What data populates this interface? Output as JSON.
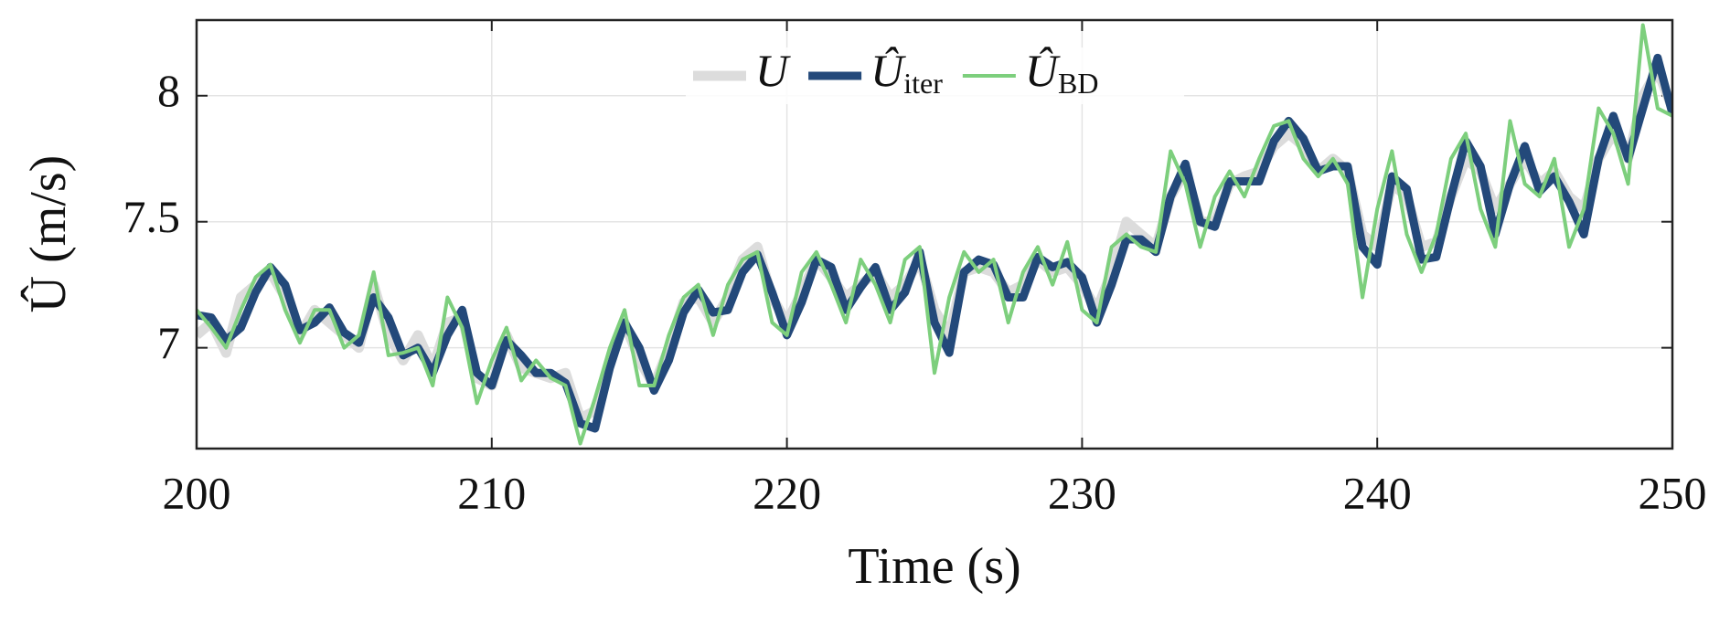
{
  "chart_data": {
    "type": "line",
    "xlabel": "Time (s)",
    "ylabel": "Û (m/s)",
    "x": [
      200,
      200.5,
      201,
      201.5,
      202,
      202.5,
      203,
      203.5,
      204,
      204.5,
      205,
      205.5,
      206,
      206.5,
      207,
      207.5,
      208,
      208.5,
      209,
      209.5,
      210,
      210.5,
      211,
      211.5,
      212,
      212.5,
      213,
      213.5,
      214,
      214.5,
      215,
      215.5,
      216,
      216.5,
      217,
      217.5,
      218,
      218.5,
      219,
      219.5,
      220,
      220.5,
      221,
      221.5,
      222,
      222.5,
      223,
      223.5,
      224,
      224.5,
      225,
      225.5,
      226,
      226.5,
      227,
      227.5,
      228,
      228.5,
      229,
      229.5,
      230,
      230.5,
      231,
      231.5,
      232,
      232.5,
      233,
      233.5,
      234,
      234.5,
      235,
      235.5,
      236,
      236.5,
      237,
      237.5,
      238,
      238.5,
      239,
      239.5,
      240,
      240.5,
      241,
      241.5,
      242,
      242.5,
      243,
      243.5,
      244,
      244.5,
      245,
      245.5,
      246,
      246.5,
      247,
      247.5,
      248,
      248.5,
      249,
      249.5,
      250
    ],
    "series": [
      {
        "name": "U",
        "color": "#dcdcdc",
        "width": 11,
        "values": [
          7.05,
          7.1,
          6.98,
          7.2,
          7.25,
          7.3,
          7.2,
          7.05,
          7.15,
          7.1,
          7.05,
          7.0,
          7.25,
          7.05,
          6.95,
          7.05,
          6.92,
          7.1,
          7.12,
          6.88,
          6.85,
          7.05,
          6.92,
          6.9,
          6.88,
          6.9,
          6.72,
          6.75,
          6.95,
          7.1,
          6.95,
          6.85,
          7.0,
          7.18,
          7.2,
          7.1,
          7.2,
          7.35,
          7.4,
          7.2,
          7.1,
          7.22,
          7.35,
          7.28,
          7.2,
          7.25,
          7.3,
          7.2,
          7.25,
          7.35,
          7.15,
          7.05,
          7.3,
          7.32,
          7.3,
          7.22,
          7.25,
          7.35,
          7.3,
          7.32,
          7.25,
          7.15,
          7.3,
          7.5,
          7.45,
          7.4,
          7.6,
          7.7,
          7.5,
          7.5,
          7.65,
          7.68,
          7.7,
          7.8,
          7.85,
          7.8,
          7.7,
          7.75,
          7.7,
          7.45,
          7.4,
          7.65,
          7.6,
          7.4,
          7.42,
          7.6,
          7.75,
          7.7,
          7.55,
          7.65,
          7.75,
          7.65,
          7.7,
          7.6,
          7.55,
          7.75,
          7.85,
          7.75,
          8.0,
          8.1,
          7.95
        ]
      },
      {
        "name": "Ûiter",
        "color": "#23497a",
        "width": 9,
        "values": [
          7.13,
          7.12,
          7.03,
          7.08,
          7.22,
          7.32,
          7.25,
          7.07,
          7.1,
          7.16,
          7.06,
          7.02,
          7.2,
          7.12,
          6.97,
          7.0,
          6.9,
          7.05,
          7.15,
          6.9,
          6.85,
          7.03,
          6.97,
          6.9,
          6.9,
          6.86,
          6.7,
          6.68,
          6.92,
          7.1,
          7.0,
          6.83,
          6.95,
          7.14,
          7.23,
          7.14,
          7.15,
          7.3,
          7.37,
          7.22,
          7.05,
          7.18,
          7.35,
          7.32,
          7.15,
          7.24,
          7.32,
          7.15,
          7.22,
          7.38,
          7.1,
          6.98,
          7.3,
          7.35,
          7.33,
          7.2,
          7.2,
          7.36,
          7.32,
          7.34,
          7.28,
          7.1,
          7.25,
          7.43,
          7.43,
          7.38,
          7.6,
          7.73,
          7.5,
          7.48,
          7.66,
          7.66,
          7.66,
          7.82,
          7.9,
          7.83,
          7.7,
          7.72,
          7.72,
          7.4,
          7.33,
          7.68,
          7.63,
          7.35,
          7.36,
          7.6,
          7.82,
          7.72,
          7.45,
          7.65,
          7.8,
          7.62,
          7.68,
          7.58,
          7.45,
          7.75,
          7.92,
          7.75,
          7.95,
          8.15,
          7.93
        ]
      },
      {
        "name": "ÛBD",
        "color": "#7dcf7d",
        "width": 4,
        "values": [
          7.15,
          7.08,
          7.0,
          7.15,
          7.28,
          7.33,
          7.15,
          7.02,
          7.15,
          7.15,
          7.0,
          7.05,
          7.3,
          6.97,
          6.98,
          7.0,
          6.85,
          7.2,
          7.08,
          6.78,
          6.95,
          7.08,
          6.87,
          6.95,
          6.88,
          6.85,
          6.62,
          6.8,
          7.0,
          7.15,
          6.85,
          6.85,
          7.05,
          7.2,
          7.25,
          7.05,
          7.25,
          7.35,
          7.38,
          7.1,
          7.05,
          7.3,
          7.38,
          7.25,
          7.1,
          7.35,
          7.25,
          7.1,
          7.35,
          7.4,
          6.9,
          7.2,
          7.38,
          7.3,
          7.35,
          7.1,
          7.3,
          7.4,
          7.25,
          7.42,
          7.15,
          7.1,
          7.4,
          7.45,
          7.4,
          7.38,
          7.78,
          7.65,
          7.4,
          7.6,
          7.7,
          7.6,
          7.75,
          7.88,
          7.9,
          7.75,
          7.68,
          7.75,
          7.65,
          7.2,
          7.55,
          7.78,
          7.45,
          7.3,
          7.45,
          7.75,
          7.85,
          7.55,
          7.4,
          7.9,
          7.65,
          7.6,
          7.75,
          7.4,
          7.55,
          7.95,
          7.85,
          7.65,
          8.28,
          7.95,
          7.92
        ]
      }
    ],
    "xlim": [
      200,
      250
    ],
    "xticks": [
      200,
      210,
      220,
      230,
      240,
      250
    ],
    "ylim": [
      6.6,
      8.3
    ],
    "yticks": [
      7,
      7.5,
      8
    ],
    "grid": true,
    "legend": "upper center"
  }
}
